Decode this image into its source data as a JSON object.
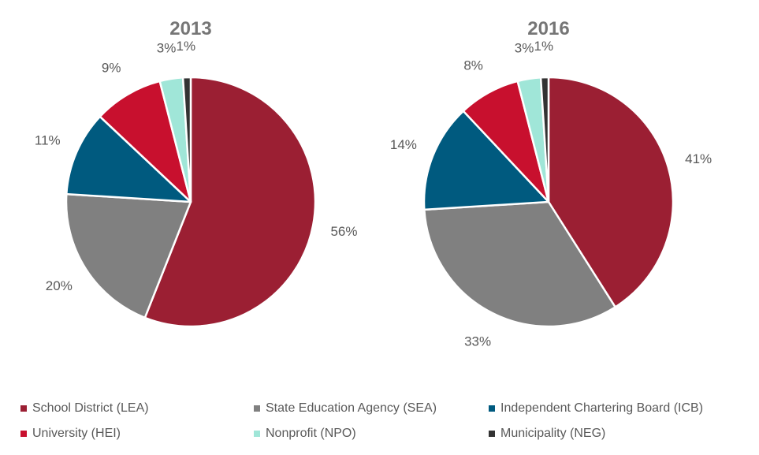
{
  "chart_data": [
    {
      "type": "pie",
      "title": "2013",
      "categories": [
        "School District (LEA)",
        "State Education Agency (SEA)",
        "Independent Chartering Board (ICB)",
        "University (HEI)",
        "Nonprofit (NPO)",
        "Municipality (NEG)"
      ],
      "values": [
        56,
        20,
        11,
        9,
        3,
        1
      ],
      "labels": [
        "56%",
        "20%",
        "11%",
        "9%",
        "3%",
        "1%"
      ]
    },
    {
      "type": "pie",
      "title": "2016",
      "categories": [
        "School District (LEA)",
        "State Education Agency (SEA)",
        "Independent Chartering Board (ICB)",
        "University (HEI)",
        "Nonprofit (NPO)",
        "Municipality (NEG)"
      ],
      "values": [
        41,
        33,
        14,
        8,
        3,
        1
      ],
      "labels": [
        "41%",
        "33%",
        "14%",
        "8%",
        "3%",
        "1%"
      ]
    }
  ],
  "legend": {
    "placement": "bottom",
    "items": [
      {
        "label": "School District (LEA)",
        "color": "#9B1F33"
      },
      {
        "label": "State Education Agency (SEA)",
        "color": "#808080"
      },
      {
        "label": "Independent Chartering Board (ICB)",
        "color": "#005A7F"
      },
      {
        "label": "University (HEI)",
        "color": "#C8102E"
      },
      {
        "label": "Nonprofit (NPO)",
        "color": "#A0E6D8"
      },
      {
        "label": "Municipality (NEG)",
        "color": "#333333"
      }
    ]
  }
}
